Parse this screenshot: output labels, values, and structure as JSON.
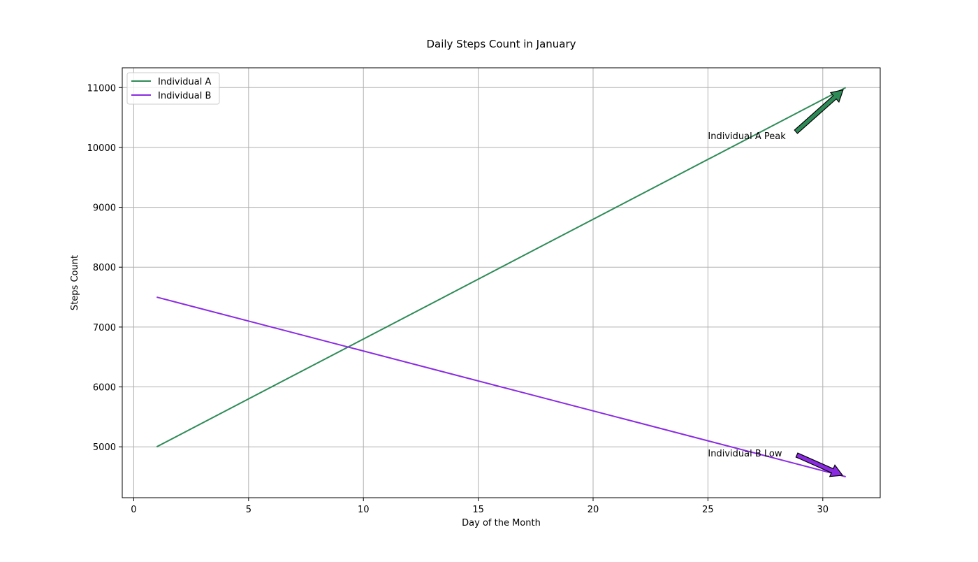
{
  "chart_data": {
    "type": "line",
    "title": "Daily Steps Count in January",
    "xlabel": "Day of the Month",
    "ylabel": "Steps Count",
    "xlim": [
      -0.5,
      32.5
    ],
    "ylim": [
      4150,
      11330
    ],
    "xticks": [
      0,
      5,
      10,
      15,
      20,
      25,
      30
    ],
    "yticks": [
      5000,
      6000,
      7000,
      8000,
      9000,
      10000,
      11000
    ],
    "xtick_labels": [
      "0",
      "5",
      "10",
      "15",
      "20",
      "25",
      "30"
    ],
    "ytick_labels": [
      "5000",
      "6000",
      "7000",
      "8000",
      "9000",
      "10000",
      "11000"
    ],
    "grid": true,
    "legend_position": "top-left",
    "series": [
      {
        "name": "Individual A",
        "color": "#2e8b57",
        "x": [
          1,
          31
        ],
        "y": [
          5000,
          11000
        ]
      },
      {
        "name": "Individual B",
        "color": "#8a2be2",
        "x": [
          1,
          31
        ],
        "y": [
          7500,
          4500
        ]
      }
    ],
    "annotations": [
      {
        "text": "Individual A Peak",
        "color": "#2e8b57",
        "point": [
          31,
          11000
        ],
        "text_pos": [
          25,
          10200
        ]
      },
      {
        "text": "Individual B Low",
        "color": "#8a2be2",
        "point": [
          31,
          4500
        ],
        "text_pos": [
          25,
          4900
        ]
      }
    ]
  }
}
